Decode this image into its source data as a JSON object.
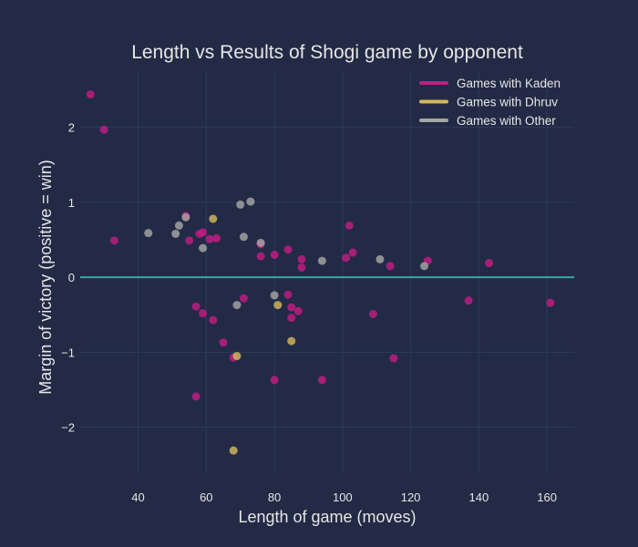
{
  "chart_data": {
    "type": "scatter",
    "title": "Length vs Results of Shogi game by opponent",
    "xlabel": "Length of game (moves)",
    "ylabel": "Margin of victory (positive = win)",
    "xlim": [
      23,
      168
    ],
    "ylim": [
      -2.6,
      2.75
    ],
    "xticks": [
      40,
      60,
      80,
      100,
      120,
      140,
      160
    ],
    "yticks": [
      -2,
      -1,
      0,
      1,
      2
    ],
    "ytick_labels": [
      "−2",
      "−1",
      "0",
      "1",
      "2"
    ],
    "grid": true,
    "legend_position": "top-right",
    "reference_line": {
      "y": 0,
      "color": "#3aa6a8"
    },
    "series": [
      {
        "name": "Games with Kaden",
        "color": "#c21c84",
        "points": [
          [
            26,
            2.44
          ],
          [
            30,
            1.97
          ],
          [
            33,
            0.49
          ],
          [
            54,
            0.82
          ],
          [
            55,
            0.49
          ],
          [
            57,
            -0.39
          ],
          [
            57,
            -1.59
          ],
          [
            58,
            0.58
          ],
          [
            59,
            -0.48
          ],
          [
            59,
            0.6
          ],
          [
            61,
            0.51
          ],
          [
            62,
            -0.57
          ],
          [
            63,
            0.52
          ],
          [
            65,
            -0.87
          ],
          [
            68,
            -1.07
          ],
          [
            71,
            -0.28
          ],
          [
            76,
            0.28
          ],
          [
            76,
            0.44
          ],
          [
            80,
            0.3
          ],
          [
            80,
            -1.37
          ],
          [
            84,
            0.37
          ],
          [
            84,
            -0.23
          ],
          [
            85,
            -0.4
          ],
          [
            85,
            -0.54
          ],
          [
            87,
            -0.45
          ],
          [
            88,
            0.24
          ],
          [
            88,
            0.13
          ],
          [
            94,
            -1.37
          ],
          [
            101,
            0.26
          ],
          [
            102,
            0.69
          ],
          [
            103,
            0.33
          ],
          [
            109,
            -0.49
          ],
          [
            114,
            0.15
          ],
          [
            115,
            -1.08
          ],
          [
            125,
            0.22
          ],
          [
            137,
            -0.31
          ],
          [
            143,
            0.19
          ],
          [
            161,
            -0.34
          ]
        ]
      },
      {
        "name": "Games with Dhruv",
        "color": "#d4b85a",
        "points": [
          [
            62,
            0.78
          ],
          [
            68,
            -2.31
          ],
          [
            69,
            -1.05
          ],
          [
            81,
            -0.37
          ],
          [
            85,
            -0.85
          ]
        ]
      },
      {
        "name": "Games with Other",
        "color": "#a6a6a6",
        "points": [
          [
            43,
            0.59
          ],
          [
            51,
            0.58
          ],
          [
            52,
            0.69
          ],
          [
            54,
            0.8
          ],
          [
            59,
            0.39
          ],
          [
            69,
            -0.37
          ],
          [
            70,
            0.97
          ],
          [
            71,
            0.54
          ],
          [
            73,
            1.01
          ],
          [
            76,
            0.46
          ],
          [
            80,
            -0.24
          ],
          [
            94,
            0.22
          ],
          [
            111,
            0.24
          ],
          [
            124,
            0.15
          ]
        ]
      }
    ]
  }
}
